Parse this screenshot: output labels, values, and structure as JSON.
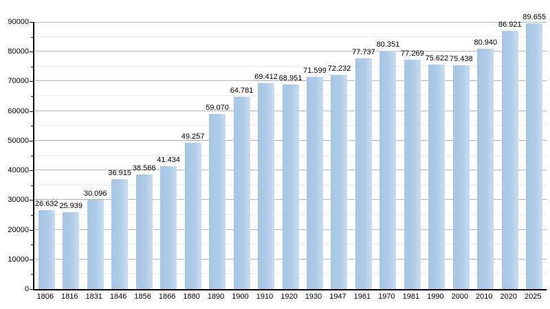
{
  "chart_data": {
    "type": "bar",
    "title": "",
    "xlabel": "",
    "ylabel": "",
    "categories": [
      "1806",
      "1816",
      "1831",
      "1846",
      "1856",
      "1866",
      "1880",
      "1890",
      "1900",
      "1910",
      "1920",
      "1930",
      "1947",
      "1961",
      "1970",
      "1981",
      "1990",
      "2000",
      "2010",
      "2020",
      "2025"
    ],
    "values": [
      26632,
      25939,
      30096,
      36915,
      38566,
      41434,
      49257,
      59070,
      64781,
      69412,
      68951,
      71599,
      72232,
      77737,
      80351,
      77269,
      75622,
      75438,
      80940,
      86921,
      89655
    ],
    "value_labels": [
      "26.632",
      "25.939",
      "30.096",
      "36.915",
      "38.566",
      "41.434",
      "49.257",
      "59.070",
      "64.781",
      "69.412",
      "68.951",
      "71.599",
      "72.232",
      "77.737",
      "80.351",
      "77.269",
      "75.622",
      "75.438",
      "80.940",
      "86.921",
      "89.655"
    ],
    "ylim": [
      0,
      90000
    ],
    "ytick_major_interval": 10000,
    "ytick_minor_interval": 5000,
    "ytick_labels": [
      "0",
      "10000",
      "20000",
      "30000",
      "40000",
      "50000",
      "60000",
      "70000",
      "80000",
      "90000"
    ],
    "grid": true,
    "legend": "none",
    "colors": {
      "bar_fill": "#aecbe8",
      "bar_fill_dark": "#a7c6e5",
      "bar_fill_light": "#c9dcf0",
      "grid_major": "#b3b3b3",
      "grid_minor": "#e9e9e9",
      "axis": "#000000",
      "text": "#000000",
      "background": "#ffffff"
    }
  }
}
